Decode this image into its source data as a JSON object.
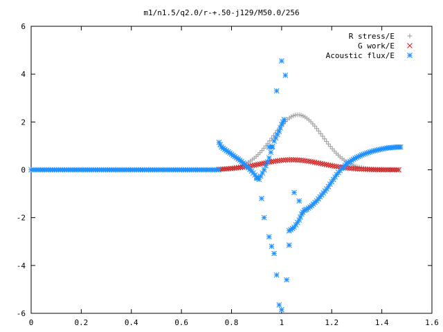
{
  "chart_data": {
    "type": "scatter",
    "title": "m1/n1.5/q2.0/r-+.50-j129/M50.0/256",
    "xlim": [
      0,
      1.6
    ],
    "ylim": [
      -6,
      6
    ],
    "x_ticks": [
      "0",
      "0.2",
      "0.4",
      "0.6",
      "0.8",
      "1",
      "1.2",
      "1.4",
      "1.6"
    ],
    "y_ticks": [
      "6",
      "4",
      "2",
      "0",
      "-2",
      "-4",
      "-6"
    ],
    "grid": false,
    "legend_position": "top-right",
    "series": [
      {
        "name": "R stress/E",
        "marker": "plus",
        "color": "#a0a0a0",
        "curve": {
          "from": 0.75,
          "to": 1.475,
          "peak_x": 1.065,
          "peak_y": 2.3,
          "width": 0.14,
          "base": 0.0
        },
        "x_start": 0.0,
        "x_step": 0.0078
      },
      {
        "name": "G work/E",
        "marker": "cross",
        "color": "#d02020",
        "curve": {
          "from": 0.75,
          "to": 1.475,
          "peak_x": 1.04,
          "peak_y": 0.42,
          "width": 0.17,
          "base": 0.0
        },
        "x_start": 0.0,
        "x_step": 0.0078
      },
      {
        "name": "Acoustic flux/E",
        "marker": "star",
        "color": "#1e90ff",
        "baseline": {
          "from": 0.0,
          "to": 0.75,
          "y": 0.0
        },
        "branch_a": [
          [
            0.75,
            1.15
          ],
          [
            0.76,
            0.95
          ],
          [
            0.78,
            0.8
          ],
          [
            0.8,
            0.65
          ],
          [
            0.82,
            0.5
          ],
          [
            0.84,
            0.35
          ],
          [
            0.86,
            0.15
          ],
          [
            0.88,
            -0.05
          ],
          [
            0.9,
            -0.3
          ],
          [
            0.91,
            -0.4
          ],
          [
            0.93,
            0.0
          ],
          [
            0.95,
            0.5
          ],
          [
            0.97,
            1.2
          ],
          [
            0.99,
            1.6
          ],
          [
            1.0,
            1.9
          ],
          [
            1.01,
            2.1
          ]
        ],
        "branch_b": [
          [
            1.03,
            -2.55
          ],
          [
            1.05,
            -2.4
          ],
          [
            1.07,
            -2.1
          ],
          [
            1.08,
            -1.85
          ],
          [
            1.09,
            -1.7
          ],
          [
            1.1,
            -1.65
          ],
          [
            1.12,
            -1.5
          ],
          [
            1.14,
            -1.3
          ],
          [
            1.16,
            -1.05
          ],
          [
            1.18,
            -0.8
          ],
          [
            1.2,
            -0.5
          ],
          [
            1.22,
            -0.2
          ],
          [
            1.24,
            0.05
          ],
          [
            1.26,
            0.25
          ],
          [
            1.28,
            0.4
          ],
          [
            1.3,
            0.52
          ],
          [
            1.32,
            0.62
          ],
          [
            1.34,
            0.7
          ],
          [
            1.36,
            0.77
          ],
          [
            1.38,
            0.82
          ],
          [
            1.4,
            0.87
          ],
          [
            1.42,
            0.91
          ],
          [
            1.44,
            0.93
          ],
          [
            1.46,
            0.95
          ],
          [
            1.475,
            0.95
          ]
        ],
        "scattered": [
          [
            0.9,
            -0.35
          ],
          [
            0.92,
            -1.2
          ],
          [
            0.93,
            -2.0
          ],
          [
            0.95,
            -2.8
          ],
          [
            0.96,
            -3.2
          ],
          [
            0.97,
            -3.5
          ],
          [
            0.98,
            -4.4
          ],
          [
            0.99,
            -5.65
          ],
          [
            1.0,
            -5.85
          ],
          [
            1.02,
            -4.6
          ],
          [
            1.03,
            -3.15
          ],
          [
            1.05,
            -0.95
          ],
          [
            1.07,
            -1.3
          ],
          [
            0.98,
            3.3
          ],
          [
            1.0,
            4.55
          ],
          [
            1.015,
            3.95
          ],
          [
            0.95,
            0.95
          ],
          [
            0.96,
            0.95
          ]
        ]
      }
    ]
  }
}
